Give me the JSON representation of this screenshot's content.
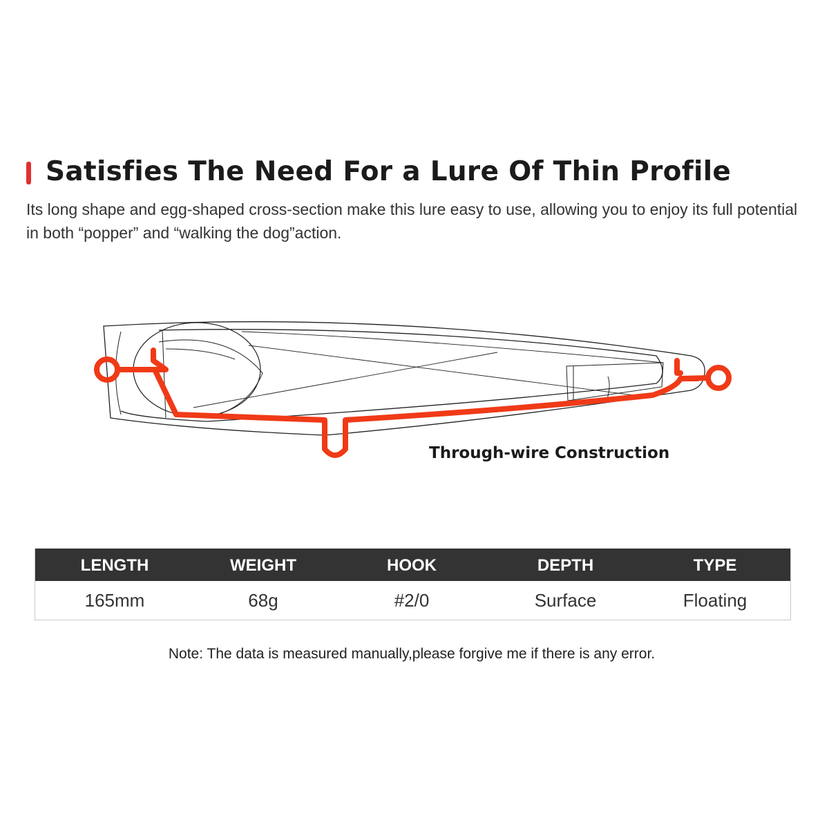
{
  "header": {
    "title": "Satisfies The Need For a Lure Of Thin Profile",
    "description": "Its long shape and egg-shaped cross-section make this lure easy to use, allowing you to enjoy its full potential in both “popper” and “walking the dog”action.",
    "accent_color": "#e03030"
  },
  "diagram": {
    "caption": "Through-wire Construction",
    "wire_color": "#f03a17"
  },
  "specs": {
    "headers": [
      "LENGTH",
      "WEIGHT",
      "HOOK",
      "DEPTH",
      "TYPE"
    ],
    "values": [
      "165mm",
      "68g",
      "#2/0",
      "Surface",
      "Floating"
    ]
  },
  "note": "Note: The data is measured manually,please forgive me if there is any error."
}
